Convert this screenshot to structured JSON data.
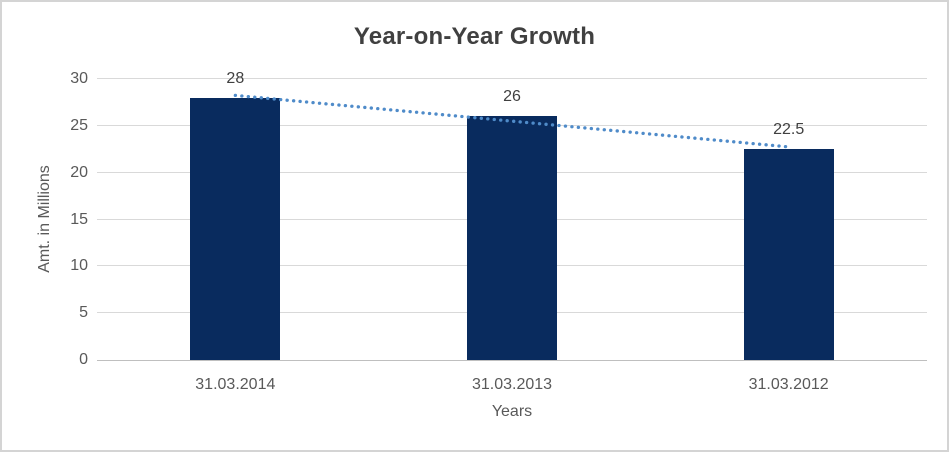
{
  "chart_data": {
    "type": "bar",
    "title": "Year-on-Year Growth",
    "xlabel": "Years",
    "ylabel": "Amt. in Millions",
    "categories": [
      "31.03.2014",
      "31.03.2013",
      "31.03.2012"
    ],
    "values": [
      28,
      26,
      22.5
    ],
    "data_labels": [
      "28",
      "26",
      "22.5"
    ],
    "ylim": [
      0,
      30
    ],
    "yticks": [
      0,
      5,
      10,
      15,
      20,
      25,
      30
    ],
    "grid": true,
    "legend": "none",
    "trendline": {
      "type": "linear",
      "style": "dotted",
      "start_value": 28.25,
      "end_value": 22.75
    },
    "colors": {
      "bar": "#092b5e",
      "trendline": "#4f8bc9",
      "gridline": "#d9d9d9",
      "axis_line": "#bfbfbf",
      "title_text": "#404040",
      "tick_text": "#595959",
      "data_label_text": "#404040",
      "background": "#ffffff",
      "frame_border": "#d4d4d4"
    }
  }
}
